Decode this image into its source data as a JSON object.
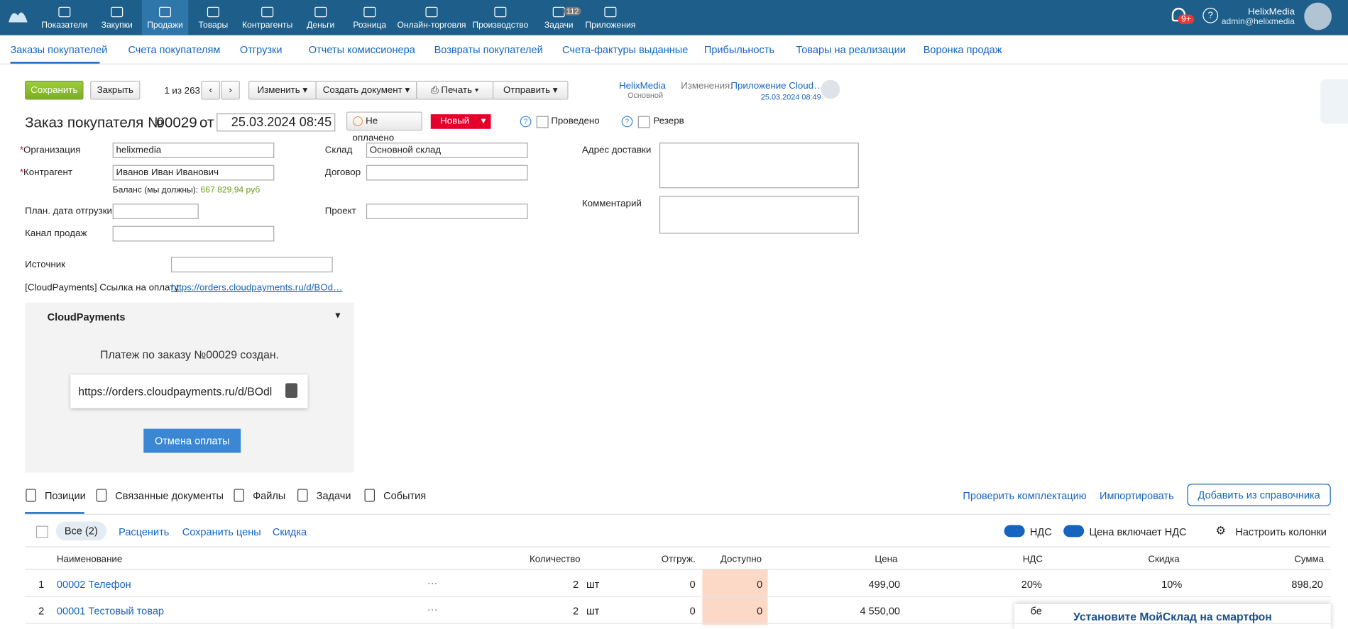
{
  "nav": {
    "items": [
      "Показатели",
      "Закупки",
      "Продажи",
      "Товары",
      "Контрагенты",
      "Деньги",
      "Розница",
      "Онлайн-торговля",
      "Производство",
      "Задачи",
      "Приложения"
    ],
    "tasks_badge": "112",
    "notif_badge": "9+",
    "user_name": "HelixMedia",
    "user_email": "admin@helixmedia"
  },
  "tabs": [
    "Заказы покупателей",
    "Счета покупателям",
    "Отгрузки",
    "Отчеты комиссионера",
    "Возвраты покупателей",
    "Счета-фактуры выданные",
    "Прибыльность",
    "Товары на реализации",
    "Воронка продаж"
  ],
  "toolbar": {
    "save": "Сохранить",
    "close": "Закрыть",
    "pager": "1 из 263",
    "change": "Изменить",
    "create": "Создать документ",
    "print": "Печать",
    "send": "Отправить",
    "owner": "HelixMedia",
    "owner_group": "Основной",
    "changes_label": "Изменения:",
    "changes_by": "Приложение Cloud…",
    "changes_date": "25.03.2024 08:49"
  },
  "doc": {
    "title": "Заказ покупателя №",
    "number": "00029",
    "from": "от",
    "date": "25.03.2024 08:45",
    "payment": "Не оплачено",
    "status": "Новый",
    "posted": "Проведено",
    "reserve": "Резерв"
  },
  "fields": {
    "org_label": "Организация",
    "org": "helixmedia",
    "agent_label": "Контрагент",
    "agent": "Иванов Иван Иванович",
    "balance_label": "Баланс (мы должны):",
    "balance": "667 829,94 руб",
    "ship_label": "План. дата отгрузки",
    "channel_label": "Канал продаж",
    "store_label": "Склад",
    "store": "Основной склад",
    "contract_label": "Договор",
    "project_label": "Проект",
    "address_label": "Адрес доставки",
    "comment_label": "Комментарий",
    "source_label": "Источник",
    "link_label": "[CloudPayments] Ссылка на оплату",
    "link": "https://orders.cloudpayments.ru/d/BOd…"
  },
  "panel": {
    "title": "CloudPayments",
    "message": "Платеж по заказу №00029 создан.",
    "url": "https://orders.cloudpayments.ru/d/BOdl",
    "cancel": "Отмена оплаты"
  },
  "lower_tabs": [
    "Позиции",
    "Связанные документы",
    "Файлы",
    "Задачи",
    "События"
  ],
  "actions": {
    "check": "Проверить комплектацию",
    "import": "Импортировать",
    "add": "Добавить из справочника"
  },
  "filter": {
    "all": "Все (2)",
    "price": "Расценить",
    "save_prices": "Сохранить цены",
    "discount": "Скидка",
    "vat": "НДС",
    "vat_incl": "Цена включает НДС",
    "columns": "Настроить колонки"
  },
  "table": {
    "header": [
      "Наименование",
      "Количество",
      "Отгруж.",
      "Доступно",
      "Цена",
      "НДС",
      "Скидка",
      "Сумма"
    ],
    "rows": [
      [
        "1",
        "00002 Телефон",
        "2",
        "шт",
        "0",
        "0",
        "499,00",
        "20%",
        "10%",
        "898,20"
      ],
      [
        "2",
        "00001 Тестовый товар",
        "2",
        "шт",
        "0",
        "0",
        "4 550,00",
        "бе"
      ]
    ]
  },
  "banner": "Установите МойСклад на смартфон"
}
